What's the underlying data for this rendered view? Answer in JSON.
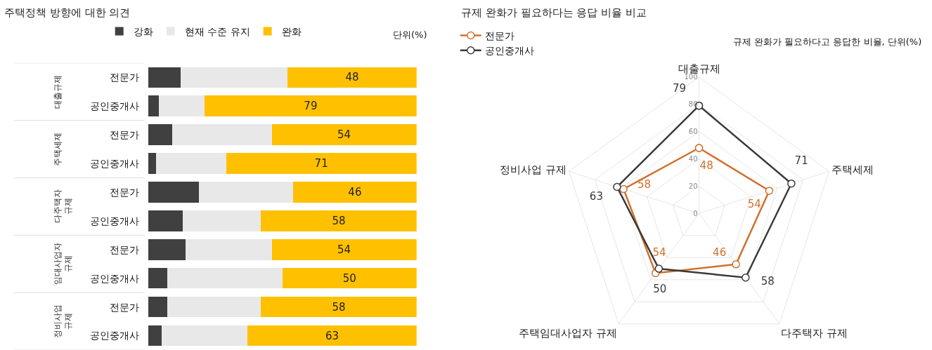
{
  "chart_data": [
    {
      "type": "bar",
      "orientation": "horizontal",
      "stacked": true,
      "title": "주택정책 방향에 대한 의견",
      "subtitle": "단위(%)",
      "categories": [
        "전문가",
        "공인중개사",
        "전문가",
        "공인중개사",
        "전문가",
        "공인중개사",
        "전문가",
        "공인중개사",
        "전문가",
        "공인중개사"
      ],
      "annotations": [
        "대출규제",
        "주택세제",
        "다주택자 규제",
        "임대사업자 규제",
        "정비사업 규제"
      ],
      "series": [
        {
          "name": "강화",
          "color": "#404040",
          "values": [
            12,
            4,
            9,
            3,
            19,
            13,
            14,
            7,
            7,
            5
          ]
        },
        {
          "name": "현재 수준 유지",
          "color": "#e8e8e8",
          "values": [
            40,
            17,
            37,
            26,
            35,
            29,
            32,
            43,
            35,
            32
          ]
        },
        {
          "name": "완화",
          "color": "#ffc000",
          "values": [
            48,
            79,
            54,
            71,
            46,
            58,
            54,
            50,
            58,
            63
          ],
          "value_labels": [
            "48",
            "79",
            "54",
            "71",
            "46",
            "58",
            "54",
            "50",
            "58",
            "63"
          ]
        }
      ],
      "xlim": [
        0,
        100
      ],
      "tick_labels": "y",
      "legend": "top",
      "grid": false
    },
    {
      "type": "radar",
      "title": "규제 완화가 필요하다는 응답 비율 비교",
      "subtitle": "규제 완화가 필요하다고 응답한 비율, 단위(%)",
      "categories": [
        "대출규제",
        "주택세제",
        "다주택자 규제",
        "주택임대사업자 규제",
        "정비사업 규제"
      ],
      "series": [
        {
          "name": "전문가",
          "color": "#d2702c",
          "values": [
            48,
            54,
            46,
            54,
            58
          ]
        },
        {
          "name": "공인중개사",
          "color": "#3a3a3a",
          "values": [
            79,
            71,
            58,
            50,
            63
          ]
        }
      ],
      "ylim": [
        0,
        100
      ],
      "yticks": [
        0,
        20,
        40,
        60,
        80,
        100
      ],
      "marker": "circle",
      "data_labels": true,
      "legend": "top left",
      "grid": true
    }
  ]
}
